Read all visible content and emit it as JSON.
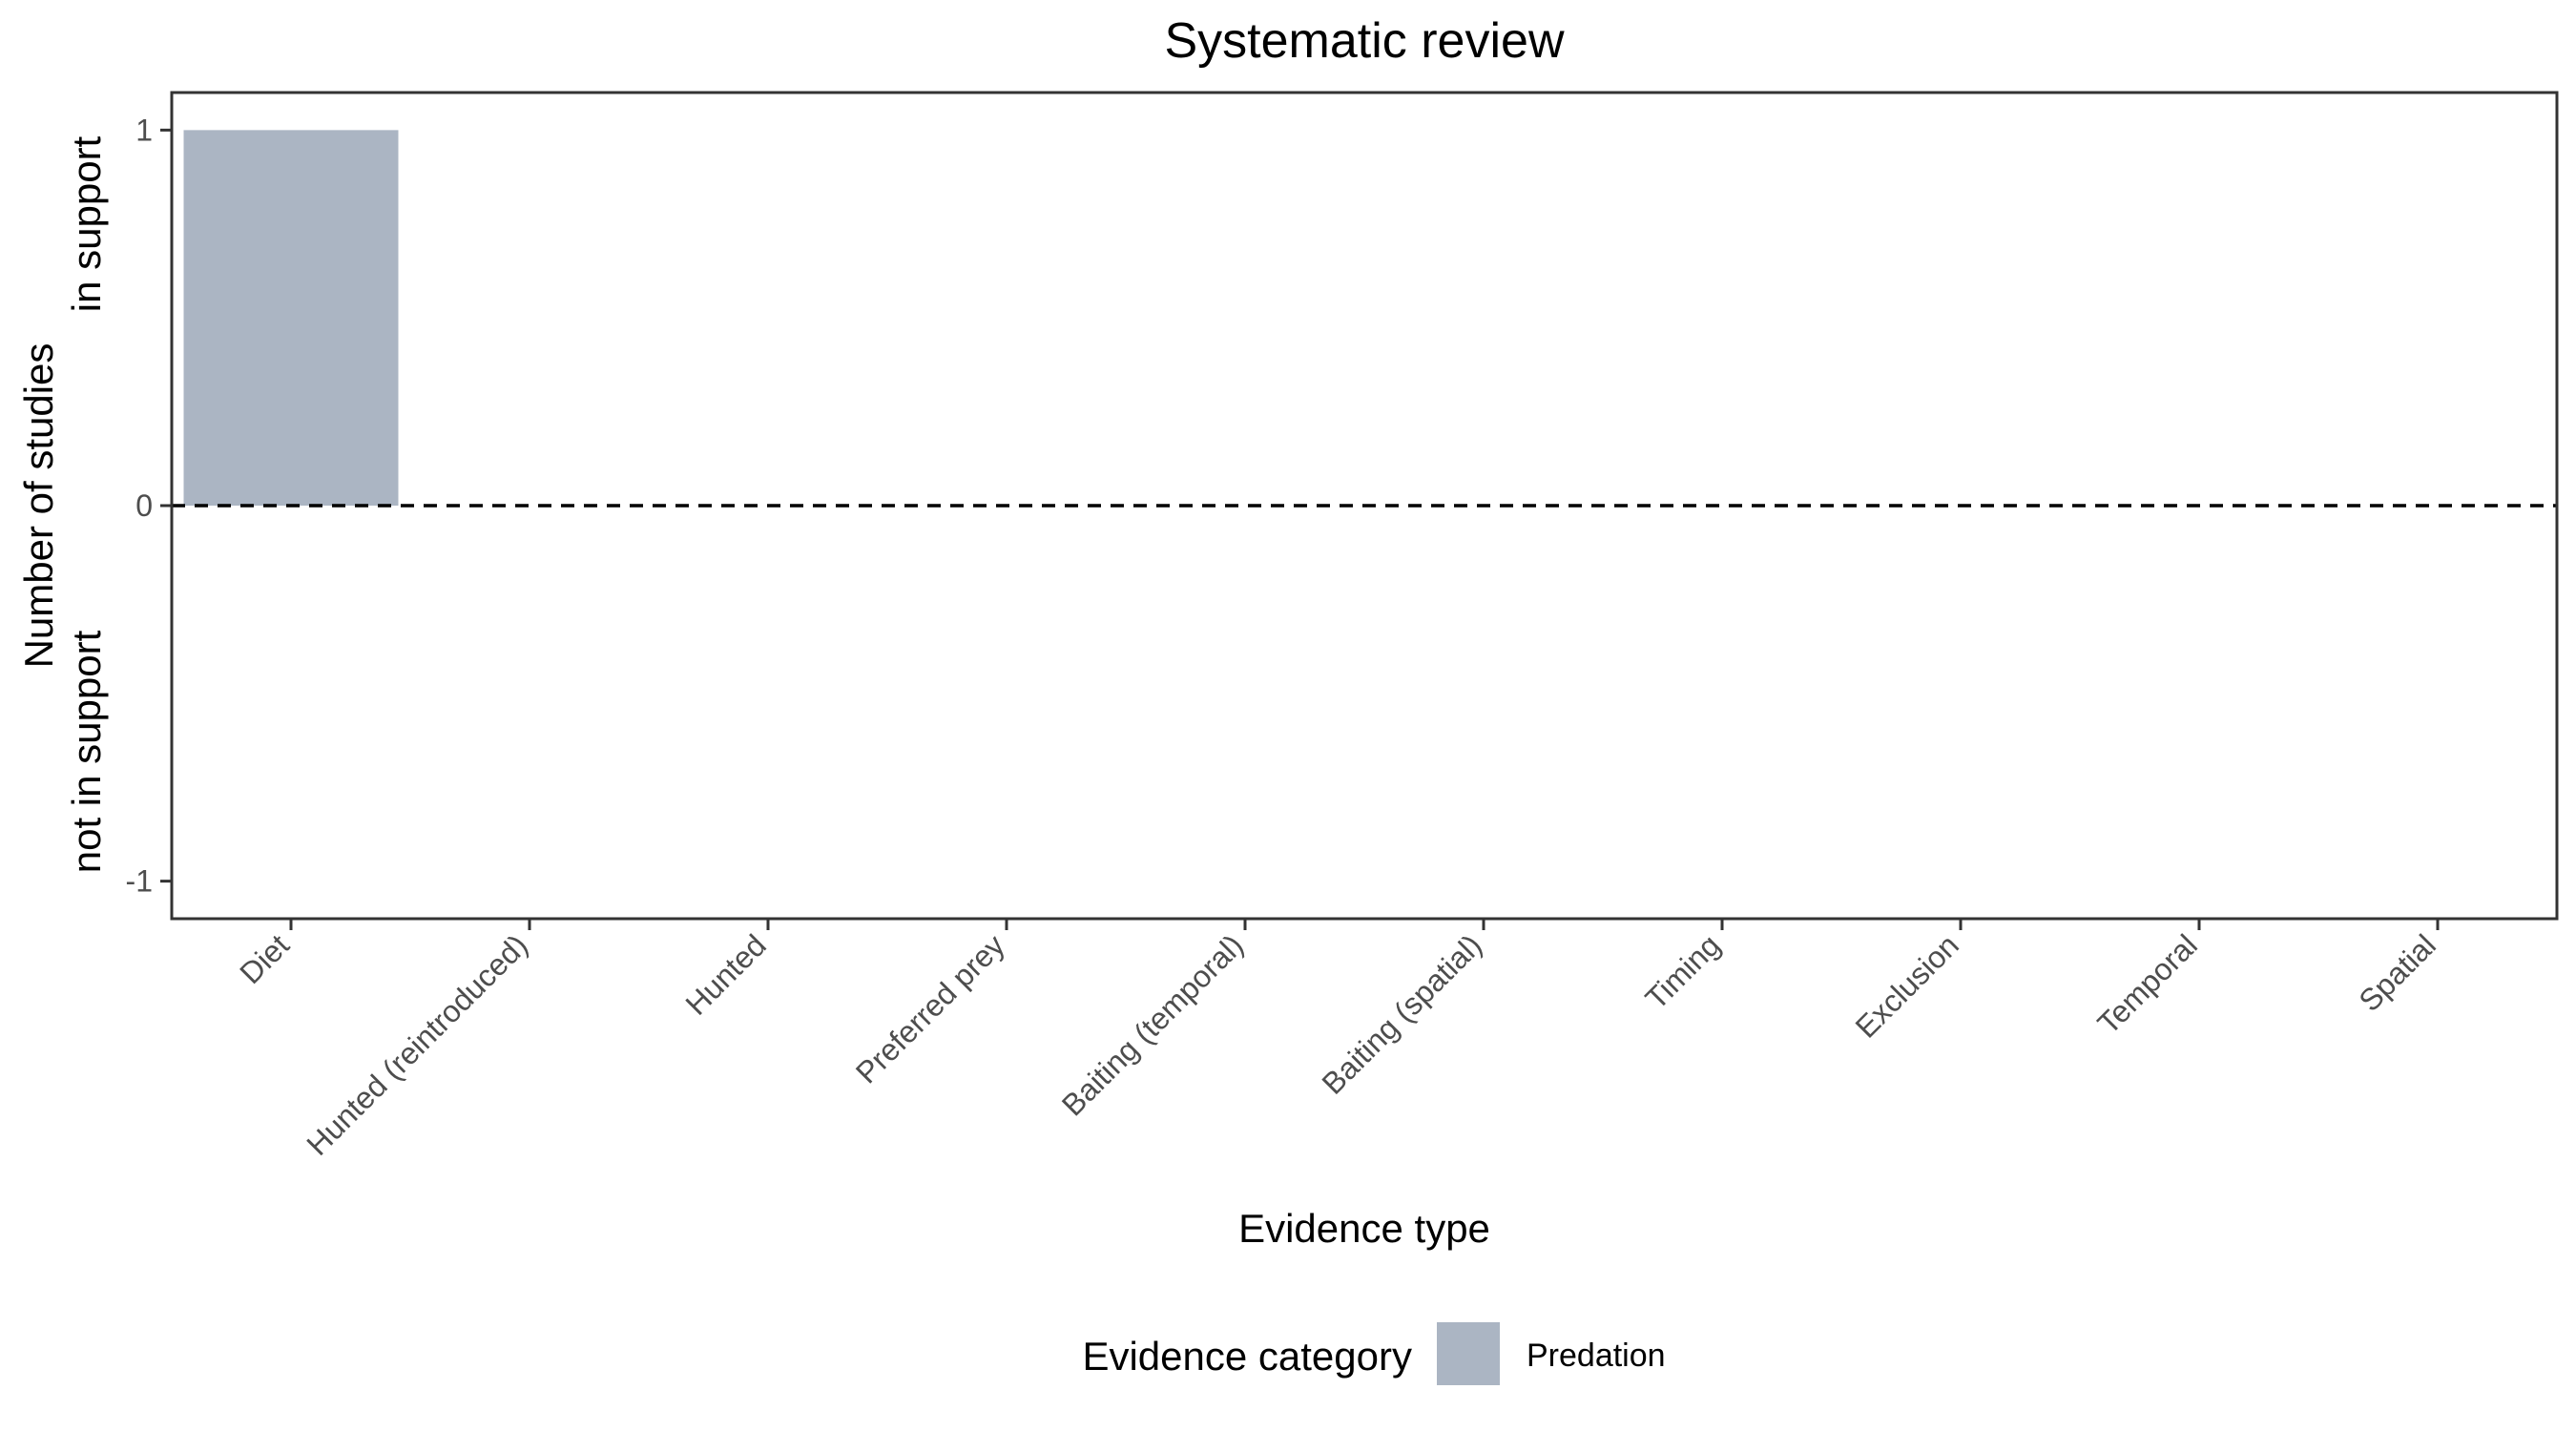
{
  "chart_data": {
    "type": "bar",
    "title": "Systematic review",
    "xlabel": "Evidence type",
    "ylabel_lines": [
      "Number of studies",
      "in support",
      "not in support"
    ],
    "categories": [
      "Diet",
      "Hunted (reintroduced)",
      "Hunted",
      "Preferred prey",
      "Baiting (temporal)",
      "Baiting (spatial)",
      "Timing",
      "Exclusion",
      "Temporal",
      "Spatial"
    ],
    "series": [
      {
        "name": "Predation",
        "color": "#abb5c3",
        "values": [
          1,
          0,
          0,
          0,
          0,
          0,
          0,
          0,
          0,
          0
        ]
      }
    ],
    "ylim": [
      -1.1,
      1.1
    ],
    "yticks": [
      -1,
      0,
      1
    ],
    "ytick_labels": [
      "-1",
      "0",
      "1"
    ],
    "reference_line": {
      "y": 0,
      "style": "dashed"
    },
    "grid": false,
    "legend": {
      "title": "Evidence category",
      "placement": "bottom"
    }
  }
}
